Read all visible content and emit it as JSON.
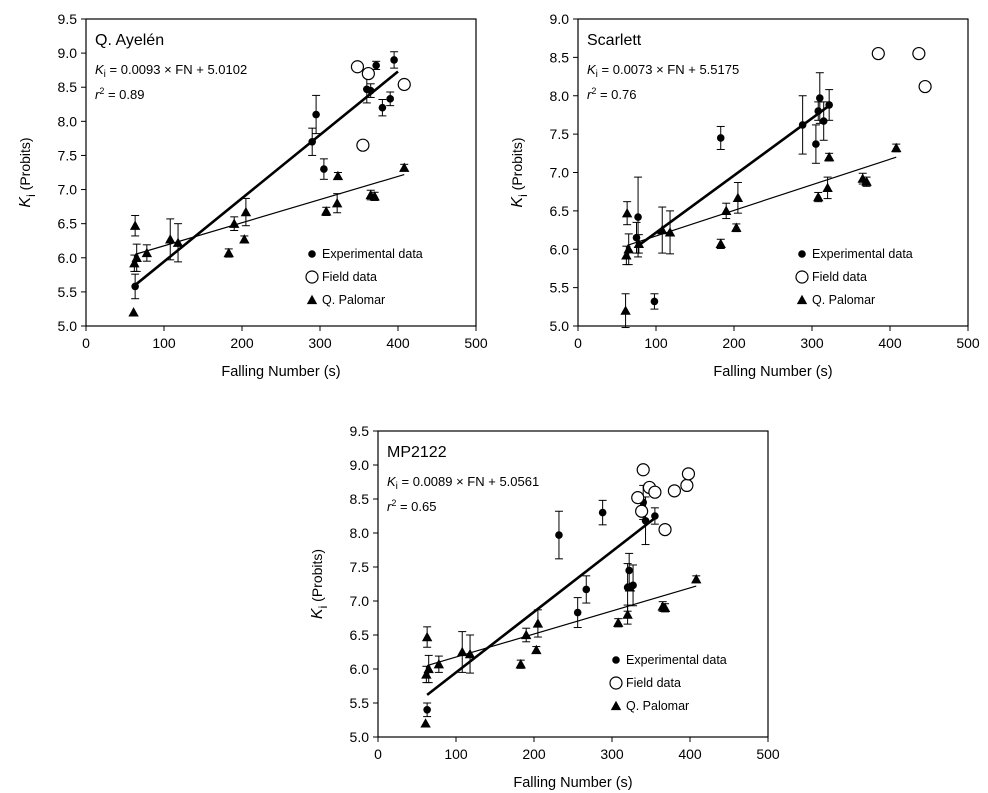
{
  "chart_data": [
    {
      "type": "scatter",
      "panel_label": "Q. Ayelén",
      "equation": {
        "prefix": "K",
        "sub": "i",
        "text": " = 0.0093 × FN + 5.0102"
      },
      "r2": {
        "r": "r",
        "sup": "2",
        "text": " = 0.89"
      },
      "xlabel": "Falling Number (s)",
      "ylabel": {
        "main": "K",
        "sub": "i",
        "unit": " (Probits)"
      },
      "xlim": [
        0,
        500
      ],
      "ylim": [
        5.0,
        9.5
      ],
      "xticks": [
        "0",
        "100",
        "200",
        "300",
        "400",
        "500"
      ],
      "yticks": [
        "5.0",
        "5.5",
        "6.0",
        "6.5",
        "7.0",
        "7.5",
        "8.0",
        "8.5",
        "9.0",
        "9.5"
      ],
      "legend": [
        "Experimental data",
        "Field data",
        "Q. Palomar"
      ],
      "series": [
        {
          "name": "Experimental data",
          "marker": "filled-circle",
          "points": [
            {
              "x": 63,
              "y": 5.58,
              "err": 0.18
            },
            {
              "x": 290,
              "y": 7.7,
              "err": 0.2
            },
            {
              "x": 295,
              "y": 8.1,
              "err": 0.28
            },
            {
              "x": 305,
              "y": 7.3,
              "err": 0.15
            },
            {
              "x": 360,
              "y": 8.47,
              "err": 0.2
            },
            {
              "x": 365,
              "y": 8.45,
              "err": 0.1
            },
            {
              "x": 372,
              "y": 8.82,
              "err": 0.06
            },
            {
              "x": 380,
              "y": 8.2,
              "err": 0.12
            },
            {
              "x": 390,
              "y": 8.33,
              "err": 0.1
            },
            {
              "x": 395,
              "y": 8.9,
              "err": 0.12
            }
          ]
        },
        {
          "name": "Field data",
          "marker": "open-circle",
          "points": [
            {
              "x": 348,
              "y": 8.8
            },
            {
              "x": 355,
              "y": 7.65
            },
            {
              "x": 362,
              "y": 8.7
            },
            {
              "x": 408,
              "y": 8.54
            }
          ]
        },
        {
          "name": "Q. Palomar",
          "marker": "triangle",
          "points": [
            {
              "x": 61,
              "y": 5.2,
              "err": 0
            },
            {
              "x": 62,
              "y": 5.92,
              "err": 0.12
            },
            {
              "x": 63,
              "y": 6.47,
              "err": 0.15
            },
            {
              "x": 65,
              "y": 6.0,
              "err": 0.2
            },
            {
              "x": 78,
              "y": 6.07,
              "err": 0.12
            },
            {
              "x": 108,
              "y": 6.27,
              "err": 0.3
            },
            {
              "x": 118,
              "y": 6.22,
              "err": 0.28
            },
            {
              "x": 183,
              "y": 6.07,
              "err": 0.06
            },
            {
              "x": 190,
              "y": 6.5,
              "err": 0.1
            },
            {
              "x": 203,
              "y": 6.27,
              "err": 0.05
            },
            {
              "x": 205,
              "y": 6.67,
              "err": 0.2
            },
            {
              "x": 308,
              "y": 6.68,
              "err": 0.06
            },
            {
              "x": 322,
              "y": 6.8,
              "err": 0.14
            },
            {
              "x": 323,
              "y": 7.2,
              "err": 0.05
            },
            {
              "x": 365,
              "y": 6.92,
              "err": 0.07
            },
            {
              "x": 370,
              "y": 6.9,
              "err": 0.06
            },
            {
              "x": 408,
              "y": 7.32,
              "err": 0.05
            }
          ]
        }
      ],
      "fit_lines": [
        {
          "name": "experimental-fit",
          "x": [
            63,
            400
          ],
          "y": [
            5.6,
            8.73
          ],
          "width": "bold"
        },
        {
          "name": "palomar-fit",
          "x": [
            63,
            408
          ],
          "y": [
            6.05,
            7.22
          ],
          "width": "thin"
        }
      ]
    },
    {
      "type": "scatter",
      "panel_label": "Scarlett",
      "equation": {
        "prefix": "K",
        "sub": "i",
        "text": " = 0.0073 × FN + 5.5175"
      },
      "r2": {
        "r": "r",
        "sup": "2",
        "text": " = 0.76"
      },
      "xlabel": "Falling Number (s)",
      "ylabel": {
        "main": "K",
        "sub": "i",
        "unit": " (Probits)"
      },
      "xlim": [
        0,
        500
      ],
      "ylim": [
        5.0,
        9.0
      ],
      "xticks": [
        "0",
        "100",
        "200",
        "300",
        "400",
        "500"
      ],
      "yticks": [
        "5.0",
        "5.5",
        "6.0",
        "6.5",
        "7.0",
        "7.5",
        "8.0",
        "8.5",
        "9.0"
      ],
      "legend": [
        "Experimental data",
        "Field data",
        "Q. Palomar"
      ],
      "series": [
        {
          "name": "Experimental data",
          "marker": "filled-circle",
          "points": [
            {
              "x": 75,
              "y": 6.15,
              "err": 0.2
            },
            {
              "x": 77,
              "y": 6.42,
              "err": 0.52
            },
            {
              "x": 98,
              "y": 5.32,
              "err": 0.1
            },
            {
              "x": 183,
              "y": 7.45,
              "err": 0.15
            },
            {
              "x": 288,
              "y": 7.62,
              "err": 0.38
            },
            {
              "x": 305,
              "y": 7.37,
              "err": 0.25
            },
            {
              "x": 308,
              "y": 7.8,
              "err": 0.12
            },
            {
              "x": 310,
              "y": 7.97,
              "err": 0.33
            },
            {
              "x": 315,
              "y": 7.67,
              "err": 0.25
            },
            {
              "x": 322,
              "y": 7.88,
              "err": 0.2
            }
          ]
        },
        {
          "name": "Field data",
          "marker": "open-circle",
          "points": [
            {
              "x": 385,
              "y": 8.55
            },
            {
              "x": 437,
              "y": 8.55
            },
            {
              "x": 445,
              "y": 8.12
            }
          ]
        },
        {
          "name": "Q. Palomar",
          "marker": "triangle",
          "points": [
            {
              "x": 61,
              "y": 5.2,
              "err": 0.22
            },
            {
              "x": 62,
              "y": 5.92,
              "err": 0.12
            },
            {
              "x": 63,
              "y": 6.47,
              "err": 0.15
            },
            {
              "x": 65,
              "y": 6.0,
              "err": 0.2
            },
            {
              "x": 78,
              "y": 6.07,
              "err": 0.12
            },
            {
              "x": 108,
              "y": 6.25,
              "err": 0.3
            },
            {
              "x": 118,
              "y": 6.22,
              "err": 0.28
            },
            {
              "x": 183,
              "y": 6.07,
              "err": 0.06
            },
            {
              "x": 190,
              "y": 6.5,
              "err": 0.1
            },
            {
              "x": 203,
              "y": 6.28,
              "err": 0.05
            },
            {
              "x": 205,
              "y": 6.67,
              "err": 0.2
            },
            {
              "x": 308,
              "y": 6.68,
              "err": 0.06
            },
            {
              "x": 320,
              "y": 6.8,
              "err": 0.14
            },
            {
              "x": 322,
              "y": 7.2,
              "err": 0.05
            },
            {
              "x": 365,
              "y": 6.92,
              "err": 0.07
            },
            {
              "x": 370,
              "y": 6.88,
              "err": 0.06
            },
            {
              "x": 408,
              "y": 7.32,
              "err": 0.05
            }
          ]
        }
      ],
      "fit_lines": [
        {
          "name": "experimental-fit",
          "x": [
            75,
            322
          ],
          "y": [
            6.03,
            7.87
          ],
          "width": "bold"
        },
        {
          "name": "palomar-fit",
          "x": [
            63,
            408
          ],
          "y": [
            6.05,
            7.2
          ],
          "width": "thin"
        }
      ]
    },
    {
      "type": "scatter",
      "panel_label": "MP2122",
      "equation": {
        "prefix": "K",
        "sub": "i",
        "text": " = 0.0089 × FN + 5.0561"
      },
      "r2": {
        "r": "r",
        "sup": "2",
        "text": " = 0.65"
      },
      "xlabel": "Falling Number (s)",
      "ylabel": {
        "main": "K",
        "sub": "i",
        "unit": " (Probits)"
      },
      "xlim": [
        0,
        500
      ],
      "ylim": [
        5.0,
        9.5
      ],
      "xticks": [
        "0",
        "100",
        "200",
        "300",
        "400",
        "500"
      ],
      "yticks": [
        "5.0",
        "5.5",
        "6.0",
        "6.5",
        "7.0",
        "7.5",
        "8.0",
        "8.5",
        "9.0",
        "9.5"
      ],
      "legend": [
        "Experimental data",
        "Field data",
        "Q. Palomar"
      ],
      "series": [
        {
          "name": "Experimental data",
          "marker": "filled-circle",
          "points": [
            {
              "x": 63,
              "y": 5.4,
              "err": 0.1
            },
            {
              "x": 232,
              "y": 7.97,
              "err": 0.35
            },
            {
              "x": 256,
              "y": 6.83,
              "err": 0.22
            },
            {
              "x": 267,
              "y": 7.17,
              "err": 0.2
            },
            {
              "x": 288,
              "y": 8.3,
              "err": 0.18
            },
            {
              "x": 320,
              "y": 7.2,
              "err": 0.35
            },
            {
              "x": 322,
              "y": 7.45,
              "err": 0.25
            },
            {
              "x": 327,
              "y": 7.23,
              "err": 0.3
            },
            {
              "x": 340,
              "y": 8.45,
              "err": 0.25
            },
            {
              "x": 343,
              "y": 8.18,
              "err": 0.35
            },
            {
              "x": 355,
              "y": 8.25,
              "err": 0.12
            }
          ]
        },
        {
          "name": "Field data",
          "marker": "open-circle",
          "points": [
            {
              "x": 333,
              "y": 8.52
            },
            {
              "x": 340,
              "y": 8.93
            },
            {
              "x": 338,
              "y": 8.32
            },
            {
              "x": 348,
              "y": 8.67
            },
            {
              "x": 355,
              "y": 8.6
            },
            {
              "x": 368,
              "y": 8.05
            },
            {
              "x": 380,
              "y": 8.62
            },
            {
              "x": 396,
              "y": 8.7
            },
            {
              "x": 398,
              "y": 8.87
            }
          ]
        },
        {
          "name": "Q. Palomar",
          "marker": "triangle",
          "points": [
            {
              "x": 61,
              "y": 5.2,
              "err": 0
            },
            {
              "x": 62,
              "y": 5.92,
              "err": 0.12
            },
            {
              "x": 63,
              "y": 6.47,
              "err": 0.15
            },
            {
              "x": 65,
              "y": 6.0,
              "err": 0.2
            },
            {
              "x": 78,
              "y": 6.07,
              "err": 0.12
            },
            {
              "x": 108,
              "y": 6.25,
              "err": 0.3
            },
            {
              "x": 118,
              "y": 6.22,
              "err": 0.28
            },
            {
              "x": 183,
              "y": 6.07,
              "err": 0.06
            },
            {
              "x": 190,
              "y": 6.5,
              "err": 0.1
            },
            {
              "x": 203,
              "y": 6.28,
              "err": 0.05
            },
            {
              "x": 205,
              "y": 6.67,
              "err": 0.2
            },
            {
              "x": 308,
              "y": 6.68,
              "err": 0.06
            },
            {
              "x": 320,
              "y": 6.8,
              "err": 0.14
            },
            {
              "x": 323,
              "y": 7.2,
              "err": 0.05
            },
            {
              "x": 365,
              "y": 6.92,
              "err": 0.07
            },
            {
              "x": 368,
              "y": 6.9,
              "err": 0.06
            },
            {
              "x": 408,
              "y": 7.32,
              "err": 0.05
            }
          ]
        }
      ],
      "fit_lines": [
        {
          "name": "experimental-fit",
          "x": [
            63,
            355
          ],
          "y": [
            5.62,
            8.22
          ],
          "width": "bold"
        },
        {
          "name": "palomar-fit",
          "x": [
            63,
            408
          ],
          "y": [
            6.05,
            7.22
          ],
          "width": "thin"
        }
      ]
    }
  ]
}
